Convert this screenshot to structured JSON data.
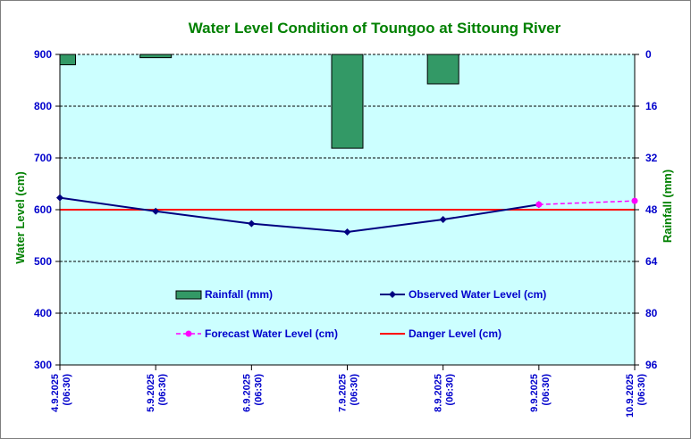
{
  "chart_data": {
    "type": "line",
    "title": "Water Level Condition of Toungoo at  Sittoung River",
    "ylabel": "Water Level (cm)",
    "y2label": "Rainfall (mm)",
    "ylim": [
      300,
      900
    ],
    "y_ticks": [
      "900",
      "800",
      "700",
      "600",
      "500",
      "400",
      "300"
    ],
    "y2lim": [
      0,
      96
    ],
    "y2_inverted": true,
    "y2_ticks": [
      "0",
      "16",
      "32",
      "48",
      "64",
      "80",
      "96"
    ],
    "grid": true,
    "categories": [
      [
        "4.9.2025",
        "(06:30)"
      ],
      [
        "5.9.2025",
        "(06:30)"
      ],
      [
        "6.9.2025",
        "(06:30)"
      ],
      [
        "7.9.2025",
        "(06:30)"
      ],
      [
        "8.9.2025",
        "(06:30)"
      ],
      [
        "9.9.2025",
        "(06:30)"
      ],
      [
        "10.9.2025",
        "(06:30)"
      ]
    ],
    "rainfall": {
      "name": "Rainfall (mm)",
      "axis": "right",
      "values": [
        3.2,
        1.0,
        0,
        29.0,
        9.1,
        0,
        0
      ],
      "color": "#339966"
    },
    "observed": {
      "name": "Observed Water Level (cm)",
      "values": [
        623,
        597,
        573,
        557,
        581,
        610,
        null
      ],
      "color": "#000080"
    },
    "forecast": {
      "name": "Forecast Water Level (cm)",
      "values": [
        null,
        null,
        null,
        null,
        null,
        610,
        617
      ],
      "color": "#ff00ff"
    },
    "danger": {
      "name": "Danger Level (cm)",
      "value": 600,
      "color": "#ff0000"
    },
    "colors": {
      "plot_background": "#ccffff",
      "grid": "#000000",
      "title": "#008000",
      "tick_labels": "#0000cc"
    },
    "legend_placement": "inside-lower-center"
  }
}
